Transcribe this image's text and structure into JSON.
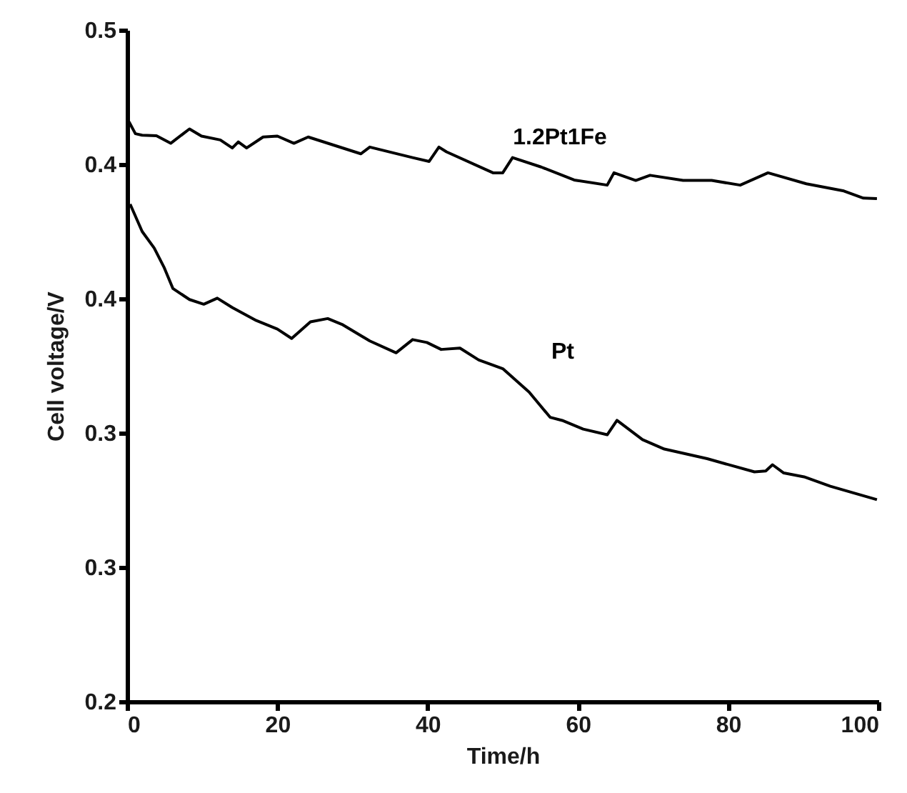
{
  "chart_data": {
    "type": "line",
    "xlabel": "Time/h",
    "ylabel": "Cell voltage/V",
    "xlim": [
      0,
      100
    ],
    "xticks": [
      0,
      20,
      40,
      60,
      80,
      100
    ],
    "ylim": [
      0.2,
      0.5
    ],
    "yticks": [
      0.2,
      {
        "value": 0.26,
        "label": "0.3"
      },
      {
        "value": 0.32,
        "label": "0.3"
      },
      {
        "value": 0.38,
        "label": "0.4"
      },
      {
        "value": 0.44,
        "label": "0.4"
      },
      0.5
    ],
    "grid": false,
    "legend": false,
    "marker": "none",
    "line_style": "solid",
    "series": [
      {
        "name": "1.2Pt1Fe",
        "color": "#000000",
        "x": [
          0.25,
          1.1,
          2,
          3.9,
          5.8,
          8.3,
          9.9,
          12.4,
          14,
          14.8,
          15.9,
          18.1,
          20,
          22.2,
          24.1,
          31.1,
          32.3,
          38,
          40.2,
          41.5,
          42.5,
          48.7,
          50,
          51.3,
          55.1,
          59.5,
          63.9,
          64.8,
          67.7,
          69.6,
          74,
          77.8,
          81.6,
          85.3,
          90.4,
          95.4,
          98,
          99.8
        ],
        "values": [
          0.459,
          0.4537,
          0.453,
          0.4528,
          0.4494,
          0.4558,
          0.4526,
          0.4509,
          0.4473,
          0.45,
          0.4473,
          0.4522,
          0.4526,
          0.4494,
          0.4522,
          0.4447,
          0.4477,
          0.443,
          0.4413,
          0.4477,
          0.4456,
          0.4362,
          0.4362,
          0.443,
          0.4388,
          0.433,
          0.4307,
          0.4362,
          0.4328,
          0.4351,
          0.4328,
          0.4328,
          0.4307,
          0.4362,
          0.4313,
          0.4281,
          0.4249,
          0.4247
        ]
      },
      {
        "name": "Pt",
        "color": "#000000",
        "x": [
          0.4,
          2,
          3.6,
          4.9,
          6.1,
          8.3,
          10.2,
          12,
          14,
          17.2,
          20,
          21.9,
          24.4,
          26.7,
          28.6,
          32.3,
          35.8,
          38,
          39.9,
          41.8,
          44.3,
          46.8,
          50,
          53.5,
          56.3,
          57.9,
          60.7,
          63.9,
          65.2,
          68.6,
          71.5,
          77.2,
          83.5,
          85,
          85.9,
          87.4,
          90.1,
          93.6,
          99.8
        ],
        "values": [
          0.4222,
          0.41,
          0.4026,
          0.3941,
          0.3845,
          0.3796,
          0.3775,
          0.3802,
          0.376,
          0.3702,
          0.3664,
          0.3622,
          0.3696,
          0.3711,
          0.3685,
          0.3611,
          0.3558,
          0.3617,
          0.3604,
          0.3573,
          0.3579,
          0.3526,
          0.3487,
          0.3383,
          0.327,
          0.3256,
          0.3217,
          0.3192,
          0.3256,
          0.317,
          0.3128,
          0.3085,
          0.3026,
          0.303,
          0.3058,
          0.3021,
          0.3004,
          0.2962,
          0.2902
        ]
      }
    ]
  }
}
